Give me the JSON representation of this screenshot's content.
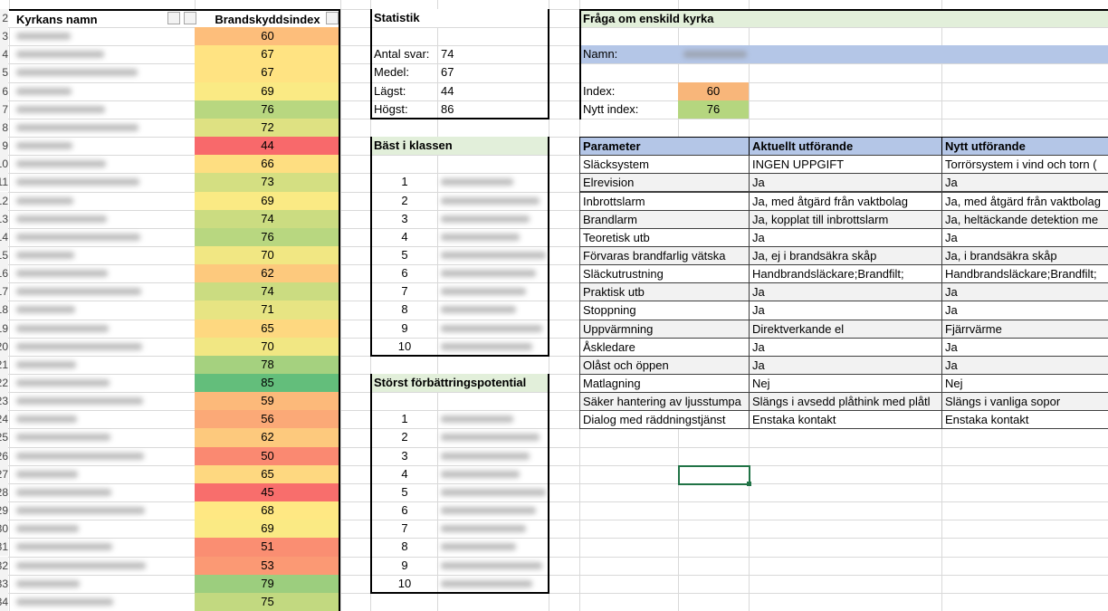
{
  "sheet": {
    "row_numbers": [
      2,
      3,
      4,
      5,
      6,
      7,
      8,
      9,
      10,
      11,
      12,
      13,
      14,
      15,
      16,
      17,
      18,
      19,
      20,
      21,
      22,
      23,
      24,
      25,
      26,
      27,
      28,
      29,
      30,
      31,
      32,
      33,
      34
    ],
    "name_header": "Kyrkans namn",
    "index_header": "Brandskyddsindex",
    "index_values": [
      60,
      67,
      67,
      69,
      76,
      72,
      44,
      66,
      73,
      69,
      74,
      76,
      70,
      62,
      74,
      71,
      65,
      70,
      78,
      85,
      59,
      56,
      62,
      50,
      65,
      45,
      68,
      69,
      51,
      53,
      79,
      75
    ],
    "color_scale": {
      "low": "#f8696b",
      "mid": "#ffeb84",
      "high": "#63be7b"
    }
  },
  "statistik": {
    "title": "Statistik",
    "rows": [
      {
        "label": "Antal svar:",
        "value": 74
      },
      {
        "label": "Medel:",
        "value": 67
      },
      {
        "label": "Lägst:",
        "value": 44
      },
      {
        "label": "Högst:",
        "value": 86
      }
    ]
  },
  "best": {
    "title": "Bäst i klassen",
    "ranks": [
      1,
      2,
      3,
      4,
      5,
      6,
      7,
      8,
      9,
      10
    ]
  },
  "worst": {
    "title": "Störst förbättringspotential",
    "ranks": [
      1,
      2,
      3,
      4,
      5,
      6,
      7,
      8,
      9,
      10
    ]
  },
  "query": {
    "title": "Fråga om enskild kyrka",
    "name_label": "Namn:",
    "index_label": "Index:",
    "index": 60,
    "index_color": "#f8b67a",
    "new_index_label": "Nytt index:",
    "new_index": 76,
    "new_index_color": "#b5d67f",
    "table": {
      "headers": [
        "Parameter",
        "Aktuellt utförande",
        "Nytt utförande"
      ],
      "rows": [
        [
          "Släcksystem",
          "INGEN UPPGIFT",
          "Torrörsystem i vind och torn ("
        ],
        [
          "Elrevision",
          "Ja",
          "Ja"
        ],
        [
          "Inbrottslarm",
          "Ja, med åtgärd från vaktbolag",
          "Ja, med åtgärd från vaktbolag"
        ],
        [
          "Brandlarm",
          "Ja, kopplat till inbrottslarm",
          "Ja, heltäckande detektion me"
        ],
        [
          "Teoretisk utb",
          "Ja",
          "Ja"
        ],
        [
          "Förvaras brandfarlig vätska",
          "Ja, ej i brandsäkra skåp",
          "Ja, i brandsäkra skåp"
        ],
        [
          "Släckutrustning",
          "Handbrandsläckare;Brandfilt;",
          "Handbrandsläckare;Brandfilt;"
        ],
        [
          "Praktisk utb",
          "Ja",
          "Ja"
        ],
        [
          "Stoppning",
          "Ja",
          "Ja"
        ],
        [
          "Uppvärmning",
          "Direktverkande el",
          "Fjärrvärme"
        ],
        [
          "Åskledare",
          "Ja",
          "Ja"
        ],
        [
          "Olåst och öppen",
          "Ja",
          "Ja"
        ],
        [
          "Matlagning",
          "Nej",
          "Nej"
        ],
        [
          "Säker hantering av ljusstumpa",
          "Slängs i avsedd plåthink med plåtl",
          "Slängs i vanliga sopor"
        ],
        [
          "Dialog med räddningstjänst",
          "Enstaka kontakt",
          "Enstaka kontakt"
        ]
      ]
    }
  }
}
